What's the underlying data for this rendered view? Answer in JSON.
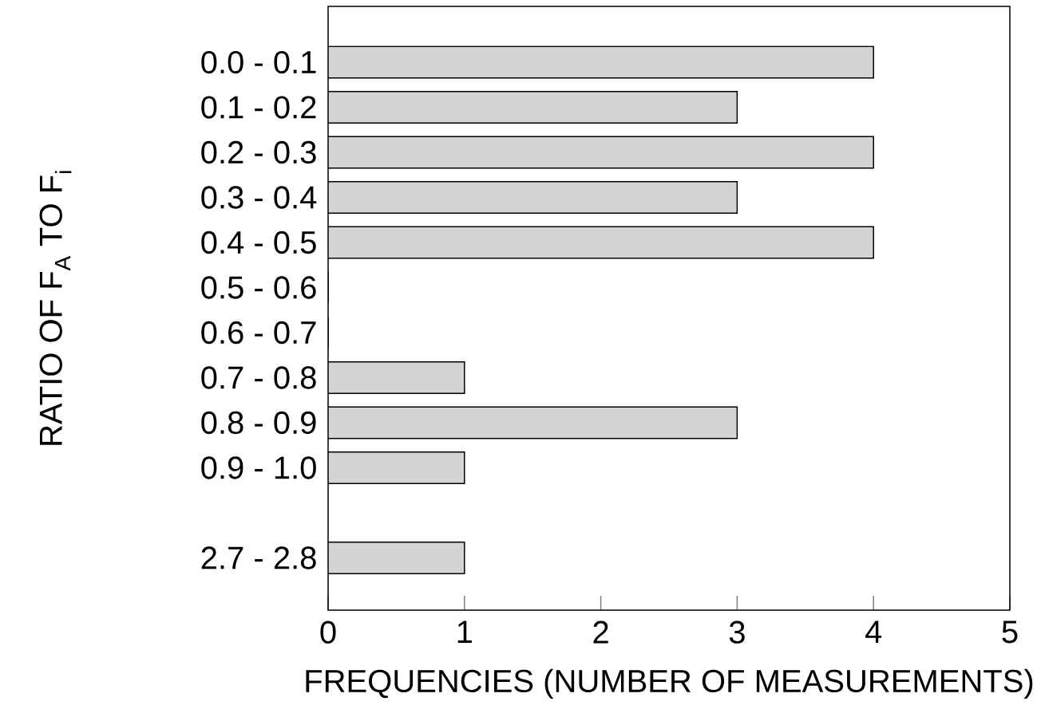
{
  "chart_data": {
    "type": "bar",
    "orientation": "horizontal",
    "xlabel": "FREQUENCIES (NUMBER OF MEASUREMENTS)",
    "ylabel": "RATIO OF F$_{A}$ TO F$_{i}$",
    "categories": [
      "0.0 - 0.1",
      "0.1 - 0.2",
      "0.2 - 0.3",
      "0.3 - 0.4",
      "0.4 - 0.5",
      "0.5 - 0.6",
      "0.6 - 0.7",
      "0.7 - 0.8",
      "0.8 - 0.9",
      "0.9 - 1.0",
      null,
      "2.7 - 2.8"
    ],
    "values": [
      4,
      3,
      4,
      3,
      4,
      0,
      0,
      1,
      3,
      1,
      null,
      1
    ],
    "color": "#d4d4d4",
    "xlim": [
      0,
      5
    ],
    "xticks": [
      0,
      1,
      2,
      3,
      4,
      5
    ],
    "grid": false
  }
}
